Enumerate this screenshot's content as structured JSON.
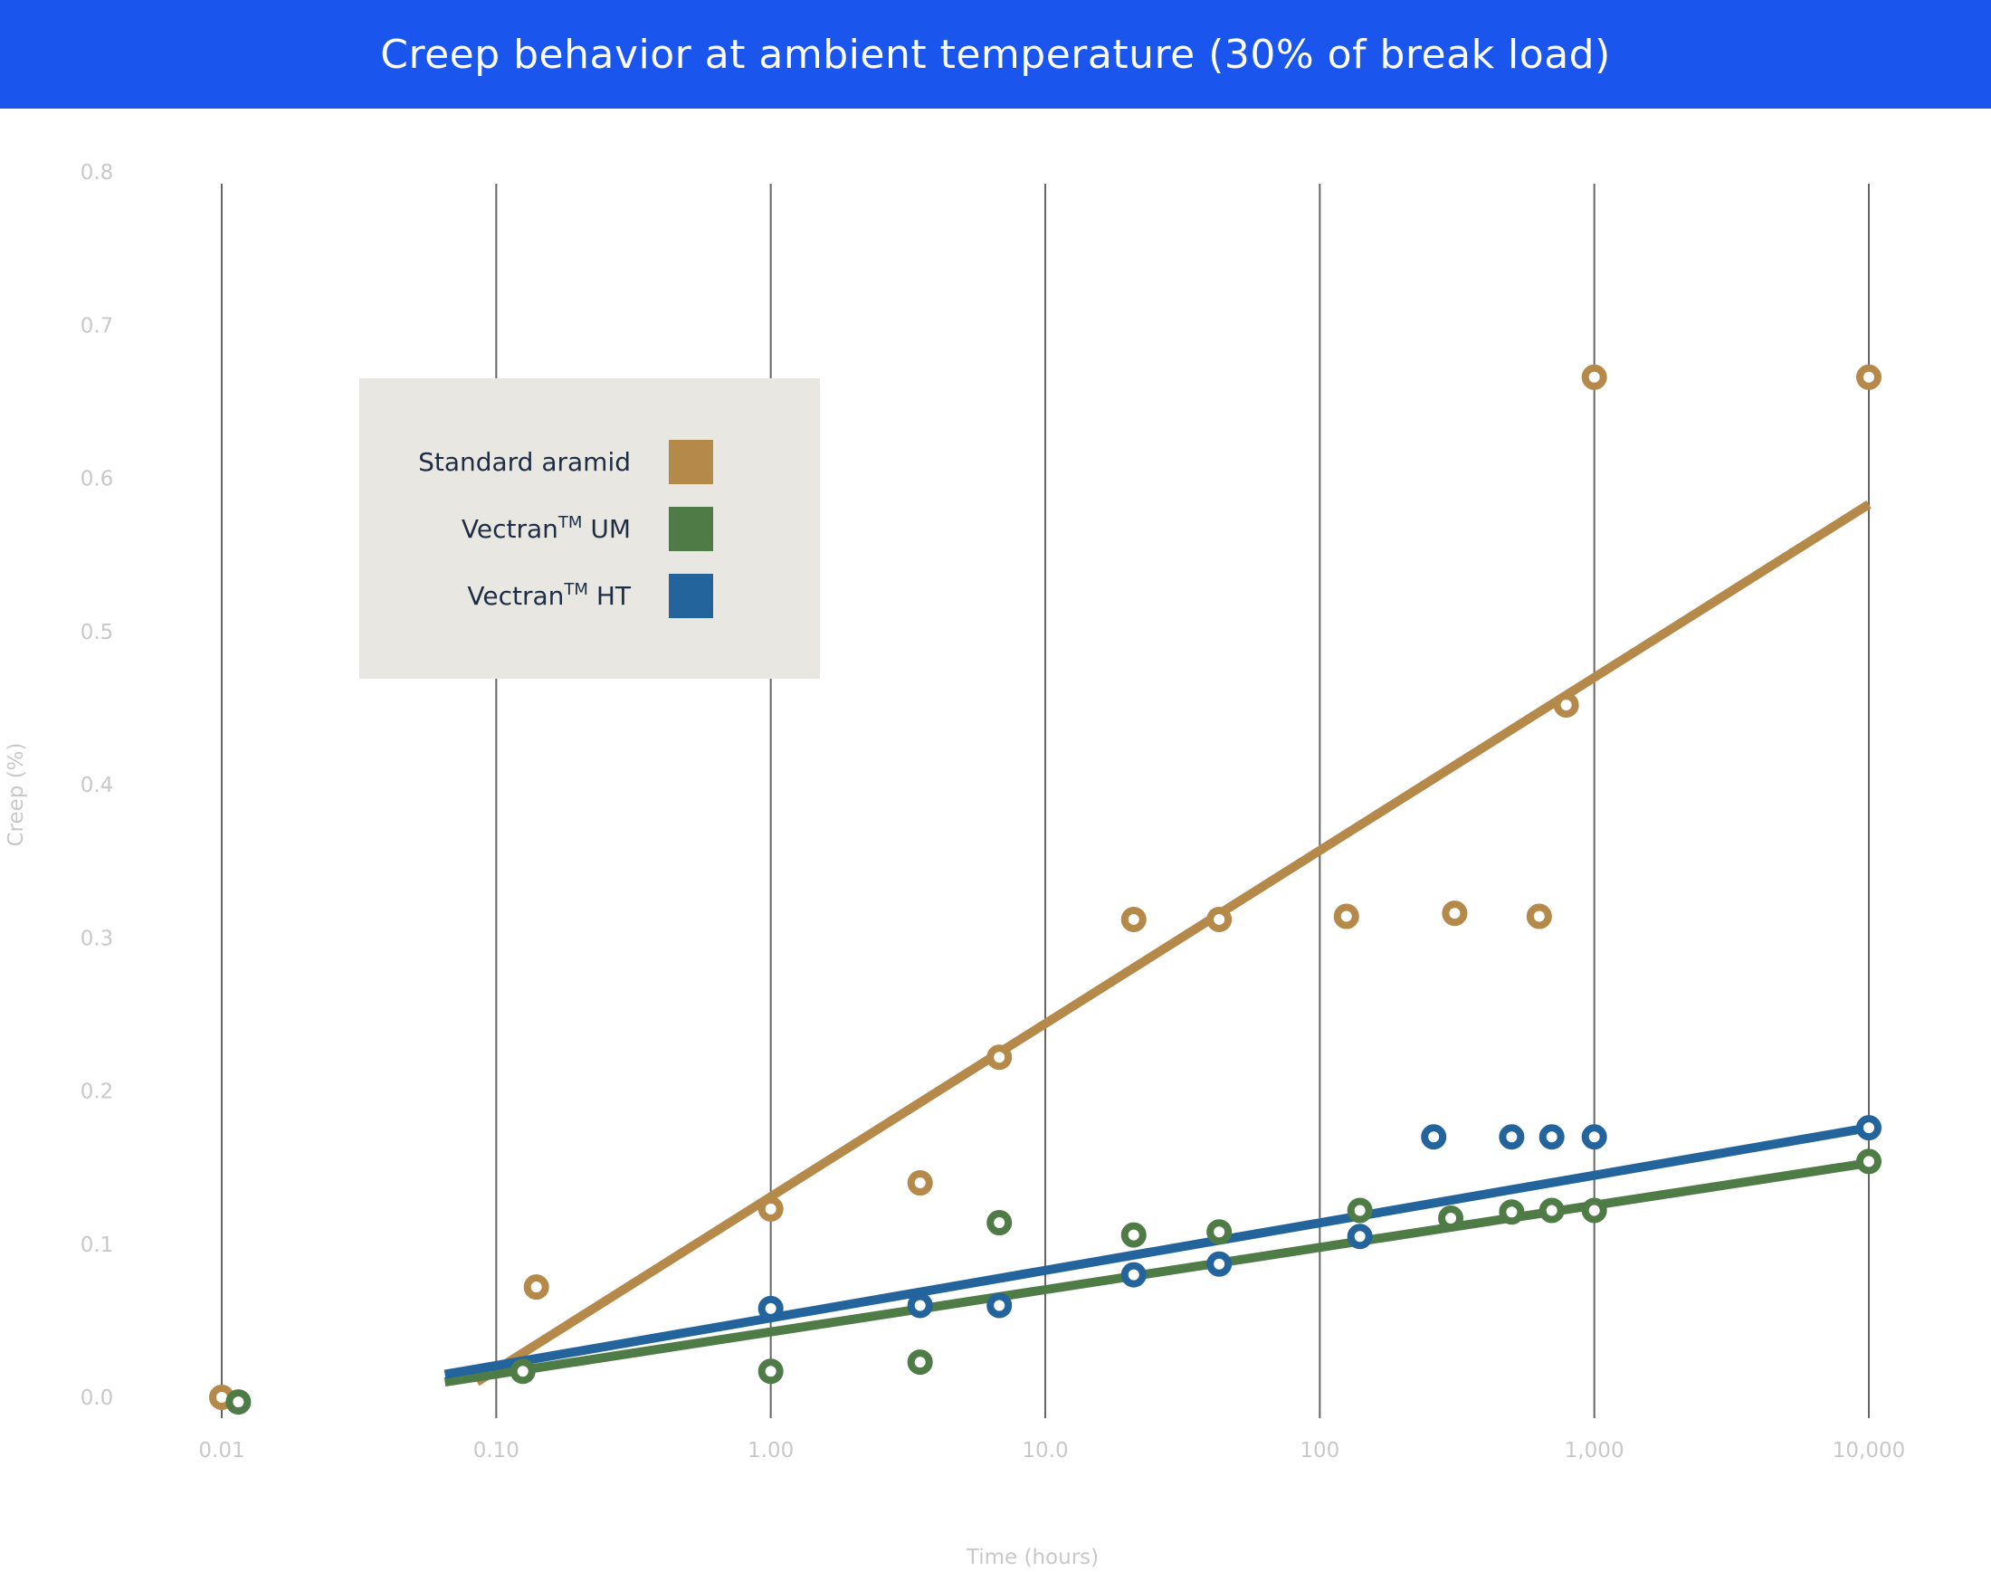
{
  "chart_data": {
    "type": "scatter",
    "title": "Creep behavior at ambient temperature (30% of break load)",
    "xlabel": "Time (hours)",
    "ylabel": "Creep (%)",
    "x_scale": "log",
    "xlim": [
      0.01,
      10000
    ],
    "ylim": [
      0.0,
      0.8
    ],
    "grid": "vertical",
    "legend_position": "upper-left",
    "x_ticks": [
      {
        "value": 0.01,
        "label": "0.01"
      },
      {
        "value": 0.1,
        "label": "0.10"
      },
      {
        "value": 1,
        "label": "1.00"
      },
      {
        "value": 10,
        "label": "10.0"
      },
      {
        "value": 100,
        "label": "100"
      },
      {
        "value": 1000,
        "label": "1,000"
      },
      {
        "value": 10000,
        "label": "10,000"
      }
    ],
    "y_ticks": [
      {
        "value": 0.0,
        "label": "0.0"
      },
      {
        "value": 0.1,
        "label": "0.1"
      },
      {
        "value": 0.2,
        "label": "0.2"
      },
      {
        "value": 0.3,
        "label": "0.3"
      },
      {
        "value": 0.4,
        "label": "0.4"
      },
      {
        "value": 0.5,
        "label": "0.5"
      },
      {
        "value": 0.6,
        "label": "0.6"
      },
      {
        "value": 0.7,
        "label": "0.7"
      },
      {
        "value": 0.8,
        "label": "0.8"
      }
    ],
    "series": [
      {
        "name": "Standard aramid",
        "legend_main": "Standard aramid",
        "legend_sup": "",
        "legend_suffix": "",
        "color": "#b5894a",
        "points": [
          [
            0.01,
            0.0
          ],
          [
            0.14,
            0.072
          ],
          [
            1.0,
            0.123
          ],
          [
            3.5,
            0.14
          ],
          [
            6.8,
            0.222
          ],
          [
            21,
            0.312
          ],
          [
            43,
            0.312
          ],
          [
            125,
            0.314
          ],
          [
            310,
            0.316
          ],
          [
            630,
            0.314
          ],
          [
            790,
            0.452
          ],
          [
            1000,
            0.666
          ],
          [
            10000,
            0.666
          ]
        ],
        "trend": [
          [
            0.085,
            0.01
          ],
          [
            10000,
            0.583
          ]
        ]
      },
      {
        "name": "Vectran™ UM",
        "legend_main": "Vectran",
        "legend_sup": "TM",
        "legend_suffix": " UM",
        "color": "#4f7c46",
        "points": [
          [
            0.0115,
            -0.003
          ],
          [
            0.125,
            0.017
          ],
          [
            1.0,
            0.017
          ],
          [
            3.5,
            0.023
          ],
          [
            6.8,
            0.114
          ],
          [
            21,
            0.106
          ],
          [
            43,
            0.108
          ],
          [
            140,
            0.122
          ],
          [
            300,
            0.117
          ],
          [
            500,
            0.121
          ],
          [
            700,
            0.122
          ],
          [
            1000,
            0.122
          ],
          [
            10000,
            0.154
          ]
        ],
        "trend": [
          [
            0.065,
            0.01
          ],
          [
            10000,
            0.153
          ]
        ]
      },
      {
        "name": "Vectran™ HT",
        "legend_main": "Vectran",
        "legend_sup": "TM",
        "legend_suffix": " HT",
        "color": "#22649b",
        "points": [
          [
            1.0,
            0.058
          ],
          [
            3.5,
            0.06
          ],
          [
            6.8,
            0.06
          ],
          [
            21,
            0.08
          ],
          [
            43,
            0.087
          ],
          [
            140,
            0.105
          ],
          [
            260,
            0.17
          ],
          [
            500,
            0.17
          ],
          [
            700,
            0.17
          ],
          [
            1000,
            0.17
          ],
          [
            10000,
            0.176
          ]
        ],
        "trend": [
          [
            0.065,
            0.015
          ],
          [
            10000,
            0.176
          ]
        ]
      }
    ]
  },
  "colors": {
    "title_bar": "#1a56ee",
    "grid": "#666666",
    "legend_bg": "#e8e7e2"
  }
}
